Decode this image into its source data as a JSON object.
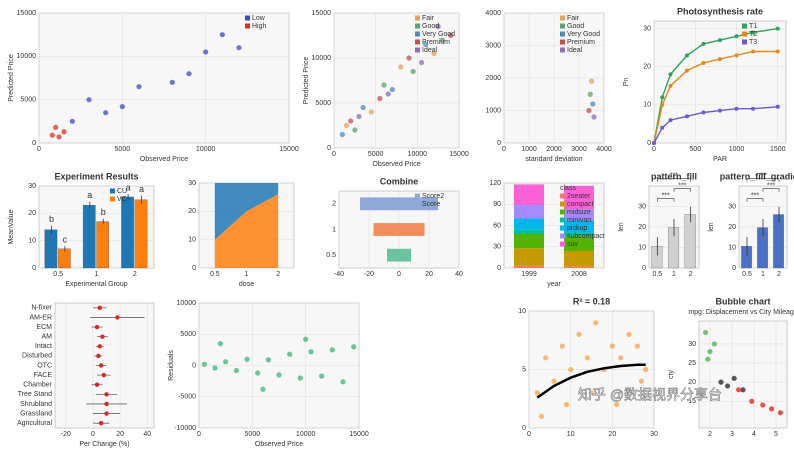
{
  "watermark": "知乎 @数据视界分享台",
  "chart_data": [
    {
      "type": "scatter",
      "xlabel": "Observed Price",
      "ylabel": "Predicted Price",
      "xlim": [
        0,
        15000
      ],
      "xticks": [
        0,
        5000,
        10000,
        15000
      ],
      "ylim": [
        0,
        15000
      ],
      "yticks": [
        0,
        5000,
        10000,
        15000
      ],
      "legend": true,
      "series": [
        {
          "name": "Low",
          "color": "#3b4cc0",
          "x": [
            2000,
            4000,
            6000,
            8000,
            10000,
            12000,
            3000,
            9000,
            5000,
            11000
          ],
          "y": [
            2500,
            3500,
            6500,
            7000,
            10500,
            11000,
            5000,
            8000,
            4200,
            12500
          ]
        },
        {
          "name": "High",
          "color": "#d7301f",
          "x": [
            800,
            1500,
            1000,
            1200
          ],
          "y": [
            900,
            1300,
            1800,
            700
          ]
        }
      ]
    },
    {
      "type": "scatter",
      "xlabel": "Observed Price",
      "ylabel": "Predicted Price",
      "xlim": [
        0,
        15000
      ],
      "xticks": [
        0,
        5000,
        10000,
        15000
      ],
      "ylim": [
        0,
        15000
      ],
      "yticks": [
        0,
        5000,
        10000,
        15000
      ],
      "legend": true,
      "series": [
        {
          "name": "Fair",
          "color": "#e6a157",
          "x": [
            1500,
            4500,
            8000,
            12000
          ],
          "y": [
            2500,
            4000,
            9000,
            10500
          ]
        },
        {
          "name": "Good",
          "color": "#5aa469",
          "x": [
            2500,
            6000,
            9500,
            13000
          ],
          "y": [
            2000,
            7000,
            8500,
            12000
          ]
        },
        {
          "name": "Very Good",
          "color": "#4b8bbe",
          "x": [
            1000,
            3500,
            7000,
            11000
          ],
          "y": [
            1500,
            4500,
            6500,
            11500
          ]
        },
        {
          "name": "Premium",
          "color": "#c0504d",
          "x": [
            2000,
            5500,
            9000,
            14000
          ],
          "y": [
            3000,
            5500,
            10000,
            12500
          ]
        },
        {
          "name": "Ideal",
          "color": "#8e6fb0",
          "x": [
            3000,
            6500,
            10500,
            12500
          ],
          "y": [
            3500,
            6000,
            9500,
            13500
          ]
        }
      ]
    },
    {
      "type": "scatter",
      "xlabel": "standard deviation",
      "xlim": [
        0,
        4000
      ],
      "xticks": [
        0,
        1000,
        2000,
        3000,
        4000
      ],
      "ylim": [
        0,
        4000
      ],
      "yticks": [
        0,
        1000,
        2000,
        3000,
        4000
      ],
      "legend": true,
      "series": [
        {
          "name": "Fair",
          "color": "#e6a157",
          "x": [
            3500
          ],
          "y": [
            1900
          ]
        },
        {
          "name": "Good",
          "color": "#5aa469",
          "x": [
            3450
          ],
          "y": [
            1500
          ]
        },
        {
          "name": "Very Good",
          "color": "#4b8bbe",
          "x": [
            3550
          ],
          "y": [
            1200
          ]
        },
        {
          "name": "Premium",
          "color": "#c0504d",
          "x": [
            3400
          ],
          "y": [
            1000
          ]
        },
        {
          "name": "Ideal",
          "color": "#8e6fb0",
          "x": [
            3600
          ],
          "y": [
            800
          ]
        }
      ]
    },
    {
      "type": "line",
      "title": "Photosynthesis rate",
      "xlabel": "PAR",
      "ylabel": "Pn",
      "xlim": [
        0,
        1600
      ],
      "xticks": [
        0,
        500,
        1000,
        1500
      ],
      "ylim": [
        0,
        32
      ],
      "yticks": [
        0,
        10,
        20,
        30
      ],
      "legend": true,
      "x": [
        0,
        100,
        200,
        400,
        600,
        800,
        1000,
        1200,
        1500
      ],
      "series": [
        {
          "name": "T1",
          "color": "#2ca25f",
          "values": [
            0,
            12,
            18,
            23,
            26,
            27,
            28,
            29,
            30
          ]
        },
        {
          "name": "T2",
          "color": "#e08a1e",
          "values": [
            0,
            10,
            15,
            19,
            21,
            22,
            23,
            24,
            24
          ]
        },
        {
          "name": "T3",
          "color": "#6a5acd",
          "values": [
            0,
            4,
            6,
            7,
            8,
            8.5,
            9,
            9,
            9.5
          ]
        }
      ]
    },
    {
      "type": "bar",
      "title": "Experiment Results",
      "xlabel": "Experimental Group",
      "ylabel": "MeanValue",
      "categories": [
        "0.5",
        "1",
        "2"
      ],
      "ylim": [
        0,
        30
      ],
      "yticks": [
        0,
        10,
        20,
        30
      ],
      "legend": true,
      "series": [
        {
          "name": "CU",
          "color": "#1f77b4",
          "values": [
            14,
            23,
            26
          ],
          "errors": [
            1.5,
            1.2,
            1
          ],
          "letters": [
            "b",
            "a",
            "a"
          ]
        },
        {
          "name": "VC",
          "color": "#ff7f0e",
          "values": [
            7,
            17,
            25
          ],
          "errors": [
            1,
            1,
            1.5
          ],
          "letters": [
            "c",
            "b",
            "a"
          ]
        }
      ]
    },
    {
      "type": "area",
      "xlabel": "dose",
      "categories": [
        "0.5",
        "1",
        "2"
      ],
      "ylim": [
        0,
        30
      ],
      "yticks": [
        0,
        10,
        20,
        30
      ],
      "series": [
        {
          "color": "#ff7f0e",
          "values": [
            10,
            20,
            26
          ]
        },
        {
          "color": "#1f77b4",
          "values": [
            20,
            10,
            4
          ]
        }
      ]
    },
    {
      "type": "barh",
      "title": "Combine",
      "categories": [
        "2",
        "1",
        "0.5"
      ],
      "xlim": [
        -40,
        40
      ],
      "xticks": [
        -40,
        -20,
        0,
        20,
        40
      ],
      "colors": [
        "#8fa8d8",
        "#f28e5c",
        "#6cc3a0"
      ],
      "legend": true,
      "series": [
        {
          "name": "Score2",
          "color": "#8fa8d8",
          "values": [
            -26,
            -17,
            -8
          ]
        },
        {
          "name": "Score",
          "color": "#8fa8d8",
          "values": [
            26,
            17,
            8
          ]
        }
      ]
    },
    {
      "type": "stacked_bar",
      "xlabel": "year",
      "legend_title": "class",
      "categories": [
        "1999",
        "2008"
      ],
      "ylim": [
        0,
        120
      ],
      "yticks": [
        0,
        30,
        60,
        90,
        120
      ],
      "legend": true,
      "series": [
        {
          "name": "2seater",
          "color": "#f8766d",
          "values": [
            3,
            2
          ]
        },
        {
          "name": "compact",
          "color": "#c49a00",
          "values": [
            25,
            22
          ]
        },
        {
          "name": "midsize",
          "color": "#53b400",
          "values": [
            20,
            21
          ]
        },
        {
          "name": "minivan",
          "color": "#00c094",
          "values": [
            6,
            5
          ]
        },
        {
          "name": "pickup",
          "color": "#00b6eb",
          "values": [
            16,
            17
          ]
        },
        {
          "name": "subcompact",
          "color": "#a58aff",
          "values": [
            19,
            16
          ]
        },
        {
          "name": "suv",
          "color": "#fb61d7",
          "values": [
            29,
            33
          ]
        }
      ]
    },
    {
      "type": "bar",
      "title": "pattern_fill",
      "ylabel": "len",
      "categories": [
        "0.5",
        "1",
        "2"
      ],
      "ylim": [
        0,
        40
      ],
      "yticks": [
        0,
        10,
        20,
        30
      ],
      "brackets": [
        "***",
        "***",
        "***"
      ],
      "series": [
        {
          "color": "#d0d0d0",
          "values": [
            10.6,
            19.7,
            26.1
          ],
          "errors": [
            4.5,
            4.2,
            3.8
          ]
        }
      ]
    },
    {
      "type": "bar",
      "title": "pattern_fill_gradient",
      "ylabel": "len",
      "categories": [
        "0.5",
        "1",
        "2"
      ],
      "ylim": [
        0,
        40
      ],
      "yticks": [
        0,
        10,
        20,
        30
      ],
      "brackets": [
        "***",
        "***",
        "***"
      ],
      "series": [
        {
          "color": "#4a72c4",
          "values": [
            10.6,
            19.7,
            26.1
          ],
          "errors": [
            4.5,
            4.2,
            3.8
          ]
        }
      ]
    },
    {
      "type": "forest",
      "xlabel": "Per Change (%)",
      "color": "#d62728",
      "xlim": [
        -28,
        45
      ],
      "xticks": [
        -20,
        0,
        20,
        40
      ],
      "categories": [
        "N-fixer",
        "AM-ER",
        "ECM",
        "AM",
        "Intact",
        "Disturbed",
        "OTC",
        "FACE",
        "Chamber",
        "Tree Stand",
        "Shrubland",
        "Grassland",
        "Agricultural"
      ],
      "values": [
        5,
        18,
        3,
        7,
        5,
        4,
        6,
        8,
        3,
        10,
        10,
        10,
        6
      ],
      "errors": [
        5,
        20,
        4,
        4,
        3,
        3,
        4,
        5,
        4,
        8,
        15,
        10,
        6
      ]
    },
    {
      "type": "scatter",
      "xlabel": "Observed Price",
      "ylabel": "Residuals",
      "xlim": [
        0,
        15000
      ],
      "xticks": [
        0,
        5000,
        10000,
        15000
      ],
      "ylim": [
        -10000,
        10000
      ],
      "yticks": [
        -10000,
        -5000,
        0,
        5000,
        10000
      ],
      "series": [
        {
          "color": "#35b779",
          "x": [
            500,
            1500,
            2500,
            3500,
            4500,
            5500,
            6500,
            7500,
            8500,
            9500,
            10500,
            11500,
            12500,
            13500,
            14500,
            2000,
            6000,
            10000
          ],
          "y": [
            200,
            -400,
            600,
            -800,
            1000,
            -1200,
            900,
            -1500,
            1800,
            -2000,
            2200,
            -1700,
            2500,
            -2600,
            3000,
            3500,
            -3800,
            4200
          ]
        }
      ]
    },
    {
      "type": "scatter",
      "title": "R² = 0.18",
      "xlim": [
        0,
        30
      ],
      "xticks": [
        0,
        10,
        20,
        30
      ],
      "ylim": [
        0,
        10
      ],
      "yticks": [
        0,
        5,
        10
      ],
      "series": [
        {
          "color": "#f4a340",
          "x": [
            2,
            4,
            6,
            8,
            10,
            12,
            14,
            16,
            18,
            20,
            22,
            24,
            26,
            28,
            3,
            9,
            15,
            21,
            27
          ],
          "y": [
            3,
            6,
            4,
            7,
            5,
            8,
            6,
            9,
            5,
            7,
            6,
            8,
            7,
            5,
            1,
            2,
            3,
            2,
            4
          ]
        },
        {
          "color": "#000000",
          "line": true,
          "x": [
            2,
            6,
            10,
            14,
            18,
            22,
            26,
            28
          ],
          "y": [
            2.6,
            3.6,
            4.3,
            4.8,
            5.1,
            5.3,
            5.4,
            5.4
          ]
        }
      ]
    },
    {
      "type": "scatter",
      "title": "Bubble chart",
      "subtitle": "mpg: Displacement vs City Mileage",
      "ylabel": "cty",
      "xlim": [
        1.5,
        5.5
      ],
      "xticks": [
        2,
        3,
        4,
        5
      ],
      "ylim": [
        8,
        36
      ],
      "yticks": [
        15,
        20,
        25,
        30
      ],
      "series": [
        {
          "color": "#4daf4a",
          "x": [
            1.8,
            2,
            2.2,
            1.9
          ],
          "y": [
            33,
            28,
            30,
            26
          ]
        },
        {
          "color": "#222222",
          "x": [
            2.5,
            2.8,
            3.1,
            3.5
          ],
          "y": [
            20,
            19,
            21,
            18
          ]
        },
        {
          "color": "#e41a1c",
          "x": [
            3.3,
            3.9,
            4.4,
            4.8,
            5.2
          ],
          "y": [
            18,
            15,
            14,
            13,
            12
          ]
        }
      ]
    }
  ]
}
